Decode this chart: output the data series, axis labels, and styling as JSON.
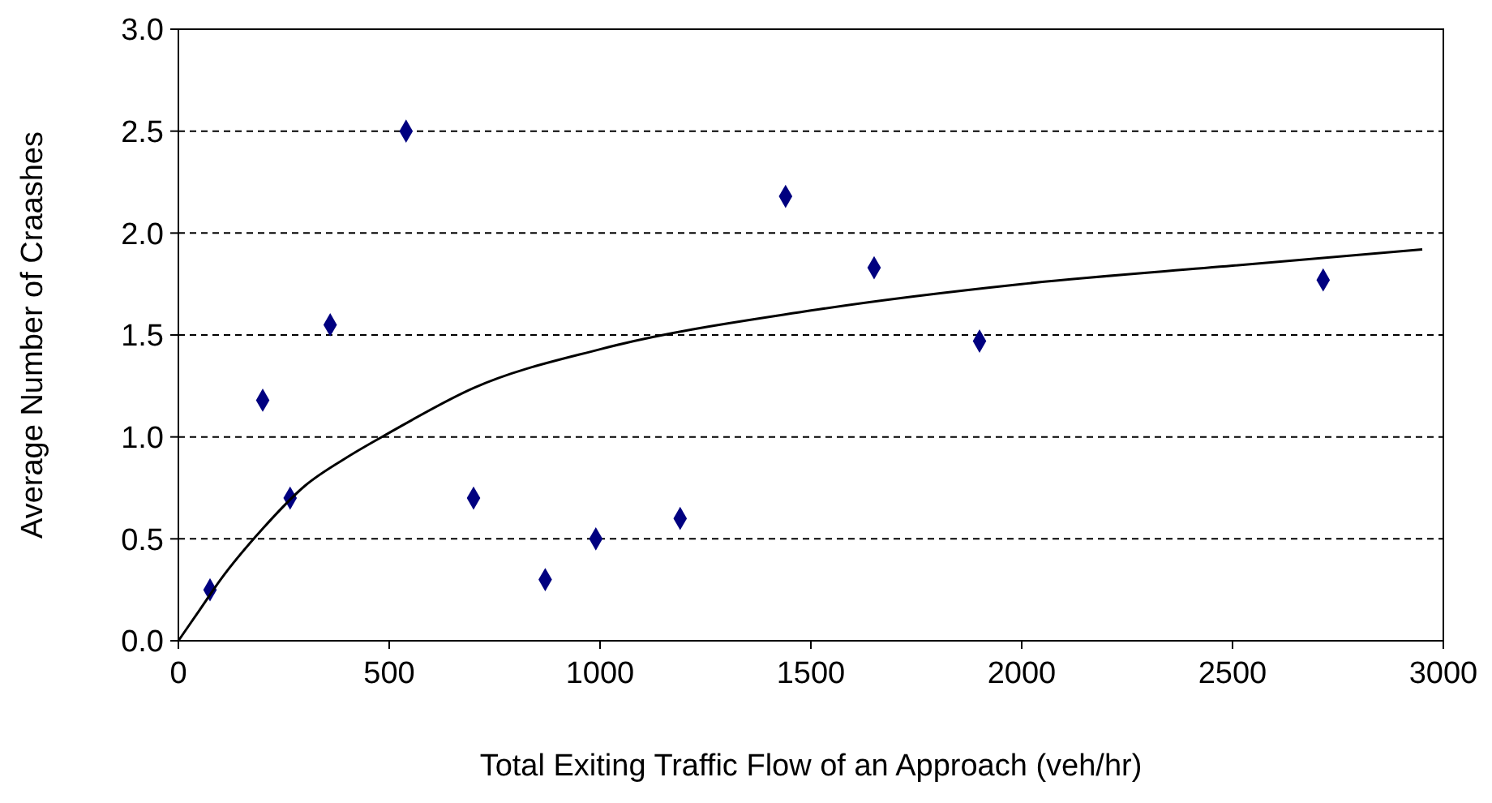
{
  "chart_data": {
    "type": "scatter",
    "xlabel": "Total Exiting Traffic Flow of an Approach (veh/hr)",
    "ylabel": "Average Number of Craashes",
    "xlim": [
      0,
      3000
    ],
    "xticks": [
      0,
      500,
      1000,
      1500,
      2000,
      2500,
      3000
    ],
    "ylim": [
      0,
      3
    ],
    "yticks": [
      {
        "value": 0,
        "label": "0.0"
      },
      {
        "value": 0.5,
        "label": "0.5"
      },
      {
        "value": 1,
        "label": "1.0"
      },
      {
        "value": 1.5,
        "label": "1.5"
      },
      {
        "value": 2,
        "label": "2.0"
      },
      {
        "value": 2.5,
        "label": "2.5"
      },
      {
        "value": 3,
        "label": "3.0"
      }
    ],
    "grid": "y",
    "series": [
      {
        "color": "#000080",
        "marker": "diamond",
        "x": [
          75,
          200,
          265,
          360,
          540,
          700,
          870,
          990,
          1190,
          1440,
          1650,
          1900,
          2715
        ],
        "values": [
          0.25,
          1.18,
          0.7,
          1.55,
          2.5,
          0.7,
          0.3,
          0.5,
          0.6,
          2.18,
          1.83,
          1.47,
          1.77
        ]
      },
      {
        "type": "line",
        "color": "#000000",
        "line_style": "solid",
        "x": [
          0,
          50,
          100,
          200,
          300,
          400,
          500,
          700,
          1000,
          1500,
          2000,
          2500,
          2950
        ],
        "values": [
          0,
          0.15,
          0.3,
          0.55,
          0.76,
          0.9,
          1.02,
          1.24,
          1.43,
          1.62,
          1.75,
          1.84,
          1.92
        ]
      }
    ]
  }
}
